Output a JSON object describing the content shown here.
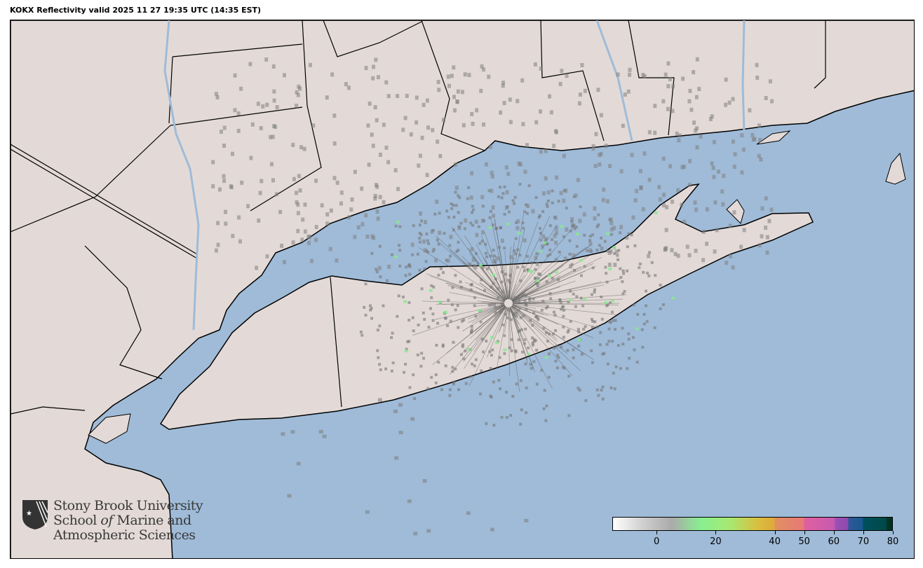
{
  "title": "KOKX Reflectivity valid 2025 11 27 19:35 UTC (14:35 EST)",
  "colors": {
    "water": "#9fbbd8",
    "land": "#e3dad7",
    "border": "#000000",
    "clutter": "#7a7a7a"
  },
  "logo": {
    "icon": "shield-star-icon",
    "line1": "Stony Brook University",
    "line2_pre": "School ",
    "line2_em": "of",
    "line2_post": " Marine and",
    "line3": "Atmospheric Sciences"
  },
  "colorbar": {
    "min": -15,
    "max": 80,
    "ticks": [
      0,
      20,
      40,
      50,
      60,
      70,
      80
    ],
    "tick_labels": [
      "0",
      "20",
      "40",
      "50",
      "60",
      "70",
      "80"
    ],
    "stops": [
      {
        "v": -15,
        "c": "#ffffff"
      },
      {
        "v": -5,
        "c": "#d0d0d0"
      },
      {
        "v": 5,
        "c": "#aaaaaa"
      },
      {
        "v": 15,
        "c": "#88f090"
      },
      {
        "v": 25,
        "c": "#a8e870"
      },
      {
        "v": 34,
        "c": "#d8c040"
      },
      {
        "v": 40,
        "c": "#e0a838"
      },
      {
        "v": 40.1,
        "c": "#e09060"
      },
      {
        "v": 50,
        "c": "#e87878"
      },
      {
        "v": 50.1,
        "c": "#e060a0"
      },
      {
        "v": 60,
        "c": "#c85ab0"
      },
      {
        "v": 61,
        "c": "#9a50b0"
      },
      {
        "v": 65,
        "c": "#9048b0"
      },
      {
        "v": 65.1,
        "c": "#305898"
      },
      {
        "v": 70,
        "c": "#185890"
      },
      {
        "v": 70.1,
        "c": "#005060"
      },
      {
        "v": 78,
        "c": "#004848"
      },
      {
        "v": 78.1,
        "c": "#003828"
      },
      {
        "v": 80,
        "c": "#003020"
      }
    ]
  }
}
